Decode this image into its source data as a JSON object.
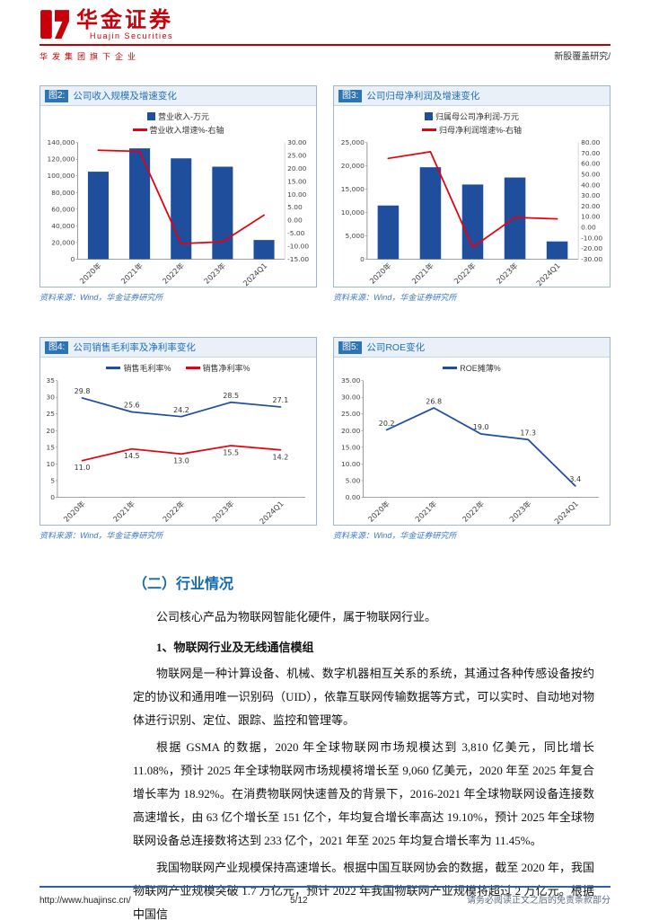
{
  "header": {
    "brand": "华金证券",
    "brand_en": "Huajin Securities",
    "tagline": "华发集团旗下企业",
    "report_type": "新股覆盖研究/"
  },
  "figures": [
    {
      "label": "图2:",
      "title": "公司收入规模及增速变化",
      "source": "资料来源：Wind，华金证券研究所"
    },
    {
      "label": "图3:",
      "title": "公司归母净利润及增速变化",
      "source": "资料来源：Wind，华金证券研究所"
    },
    {
      "label": "图4:",
      "title": "公司销售毛利率及净利率变化",
      "source": "资料来源：Wind，华金证券研究所"
    },
    {
      "label": "图5:",
      "title": "公司ROE变化",
      "source": "资料来源：Wind，华金证券研究所"
    }
  ],
  "chart_data": [
    {
      "type": "bar",
      "legend": "stack",
      "categories": [
        "2020年",
        "2021年",
        "2022年",
        "2023年",
        "2024Q1"
      ],
      "left_axis": {
        "min": 0,
        "max": 140000,
        "step": 20000,
        "format": "thousands"
      },
      "right_axis": {
        "min": -15,
        "max": 30,
        "step": 5,
        "format": "dec2"
      },
      "bar": {
        "name": "营业收入-万元",
        "color": "#1F4E9D",
        "values": [
          105000,
          133000,
          121000,
          111000,
          23000
        ]
      },
      "lines": [
        {
          "name": "营业收入增速%-右轴",
          "color": "#E60012",
          "axis": "right",
          "values": [
            27.0,
            26.6,
            -9.0,
            -8.3,
            2.0
          ]
        }
      ]
    },
    {
      "type": "bar",
      "legend": "stack",
      "categories": [
        "2020年",
        "2021年",
        "2022年",
        "2023年",
        "2024Q1"
      ],
      "left_axis": {
        "min": 0,
        "max": 25000,
        "step": 5000,
        "format": "thousands"
      },
      "right_axis": {
        "min": -30,
        "max": 80,
        "step": 10,
        "format": "dec2"
      },
      "bar": {
        "name": "归属母公司净利润-万元",
        "color": "#1F4E9D",
        "values": [
          11500,
          19700,
          16000,
          17500,
          3800
        ]
      },
      "lines": [
        {
          "name": "归母净利润增速%-右轴",
          "color": "#E60012",
          "axis": "right",
          "values": [
            65.0,
            71.3,
            -18.8,
            9.4,
            8.0
          ]
        }
      ]
    },
    {
      "type": "line",
      "legend": "inline",
      "categories": [
        "2020年",
        "2021年",
        "2022年",
        "2023年",
        "2024Q1"
      ],
      "left_axis": {
        "min": 0,
        "max": 35,
        "step": 5,
        "format": "int"
      },
      "lines": [
        {
          "name": "销售毛利率%",
          "color": "#1F4E9D",
          "axis": "left",
          "values": [
            29.8,
            25.6,
            24.2,
            28.5,
            27.1
          ],
          "labels": [
            "29.8",
            "25.6",
            "24.2",
            "28.5",
            "27.1"
          ],
          "label_pos": "above"
        },
        {
          "name": "销售净利率%",
          "color": "#E60012",
          "axis": "left",
          "values": [
            11.0,
            14.5,
            13.0,
            15.5,
            14.2
          ],
          "labels": [
            "11.0",
            "14.5",
            "13.0",
            "15.5",
            "14.2"
          ],
          "label_pos": "below"
        }
      ]
    },
    {
      "type": "line",
      "legend": "inline",
      "categories": [
        "2020年",
        "2021年",
        "2022年",
        "2023年",
        "2024Q1"
      ],
      "left_axis": {
        "min": 0,
        "max": 35,
        "step": 5,
        "format": "dec2"
      },
      "lines": [
        {
          "name": "ROE摊薄%",
          "color": "#1F4E9D",
          "axis": "left",
          "values": [
            20.2,
            26.8,
            19.0,
            17.3,
            3.4
          ],
          "labels": [
            "20.2",
            "26.8",
            "19.0",
            "17.3",
            "3.4"
          ],
          "label_pos": "above"
        }
      ]
    }
  ],
  "section": {
    "heading": "（二）行业情况",
    "para_intro": "公司核心产品为物联网智能化硬件，属于物联网行业。",
    "sub_heading": "1、物联网行业及无线通信模组",
    "para_iot_def": "物联网是一种计算设备、机械、数字机器相互关系的系统，其通过各种传感设备按约定的协议和通用唯一识别码（UID），依靠互联网传输数据等方式，可以实时、自动地对物体进行识别、定位、跟踪、监控和管理等。",
    "para_gsma": "根据 GSMA 的数据，2020 年全球物联网市场规模达到 3,810 亿美元，同比增长 11.08%，预计 2025 年全球物联网市场规模将增长至 9,060 亿美元，2020 年至 2025 年复合增长率为 18.92%。在消费物联网快速普及的背景下，2016-2021 年全球物联网设备连接数高速增长，由 63 亿个增长至 151 亿个，年均复合增长率高达 19.10%，预计 2025 年全球物联网设备总连接数将达到 233 亿个，2021 年至 2025 年均复合增长率为 11.45%。",
    "para_china": "我国物联网产业规模保持高速增长。根据中国互联网协会的数据，截至 2020 年，我国物联网产业规模突破 1.7 万亿元，预计 2022 年我国物联网产业规模将超过 2 万亿元。根据中国信"
  },
  "footer": {
    "url": "http://www.huajinsc.cn/",
    "page": "5/12",
    "disclaimer": "请务必阅读正文之后的免责条款部分"
  }
}
